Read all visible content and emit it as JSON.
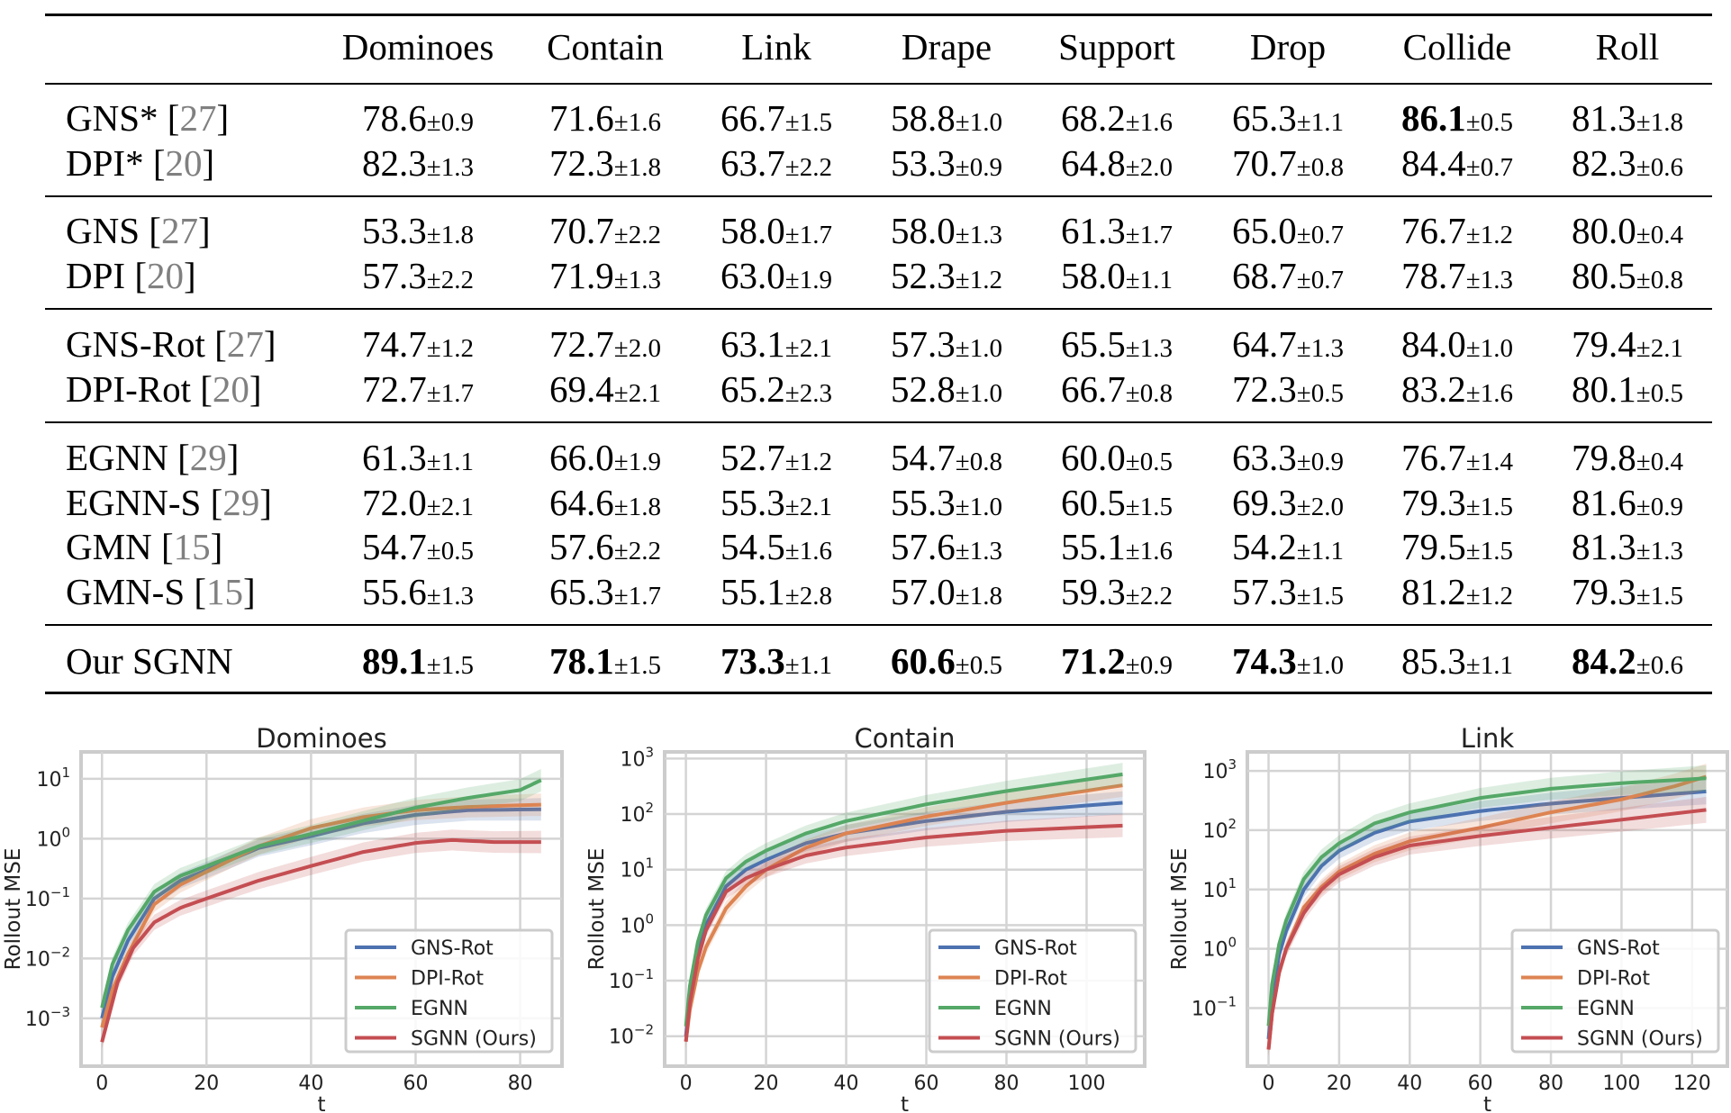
{
  "table": {
    "columns": [
      "Dominoes",
      "Contain",
      "Link",
      "Drape",
      "Support",
      "Drop",
      "Collide",
      "Roll"
    ],
    "groups": [
      [
        {
          "name": "GNS*",
          "ref": "27",
          "cells": [
            [
              "78.6",
              "±0.9",
              false
            ],
            [
              "71.6",
              "±1.6",
              false
            ],
            [
              "66.7",
              "±1.5",
              false
            ],
            [
              "58.8",
              "±1.0",
              false
            ],
            [
              "68.2",
              "±1.6",
              false
            ],
            [
              "65.3",
              "±1.1",
              false
            ],
            [
              "86.1",
              "±0.5",
              true
            ],
            [
              "81.3",
              "±1.8",
              false
            ]
          ]
        },
        {
          "name": "DPI*",
          "ref": "20",
          "cells": [
            [
              "82.3",
              "±1.3",
              false
            ],
            [
              "72.3",
              "±1.8",
              false
            ],
            [
              "63.7",
              "±2.2",
              false
            ],
            [
              "53.3",
              "±0.9",
              false
            ],
            [
              "64.8",
              "±2.0",
              false
            ],
            [
              "70.7",
              "±0.8",
              false
            ],
            [
              "84.4",
              "±0.7",
              false
            ],
            [
              "82.3",
              "±0.6",
              false
            ]
          ]
        }
      ],
      [
        {
          "name": "GNS",
          "ref": "27",
          "cells": [
            [
              "53.3",
              "±1.8",
              false
            ],
            [
              "70.7",
              "±2.2",
              false
            ],
            [
              "58.0",
              "±1.7",
              false
            ],
            [
              "58.0",
              "±1.3",
              false
            ],
            [
              "61.3",
              "±1.7",
              false
            ],
            [
              "65.0",
              "±0.7",
              false
            ],
            [
              "76.7",
              "±1.2",
              false
            ],
            [
              "80.0",
              "±0.4",
              false
            ]
          ]
        },
        {
          "name": "DPI",
          "ref": "20",
          "cells": [
            [
              "57.3",
              "±2.2",
              false
            ],
            [
              "71.9",
              "±1.3",
              false
            ],
            [
              "63.0",
              "±1.9",
              false
            ],
            [
              "52.3",
              "±1.2",
              false
            ],
            [
              "58.0",
              "±1.1",
              false
            ],
            [
              "68.7",
              "±0.7",
              false
            ],
            [
              "78.7",
              "±1.3",
              false
            ],
            [
              "80.5",
              "±0.8",
              false
            ]
          ]
        }
      ],
      [
        {
          "name": "GNS-Rot",
          "ref": "27",
          "cells": [
            [
              "74.7",
              "±1.2",
              false
            ],
            [
              "72.7",
              "±2.0",
              false
            ],
            [
              "63.1",
              "±2.1",
              false
            ],
            [
              "57.3",
              "±1.0",
              false
            ],
            [
              "65.5",
              "±1.3",
              false
            ],
            [
              "64.7",
              "±1.3",
              false
            ],
            [
              "84.0",
              "±1.0",
              false
            ],
            [
              "79.4",
              "±2.1",
              false
            ]
          ]
        },
        {
          "name": "DPI-Rot",
          "ref": "20",
          "cells": [
            [
              "72.7",
              "±1.7",
              false
            ],
            [
              "69.4",
              "±2.1",
              false
            ],
            [
              "65.2",
              "±2.3",
              false
            ],
            [
              "52.8",
              "±1.0",
              false
            ],
            [
              "66.7",
              "±0.8",
              false
            ],
            [
              "72.3",
              "±0.5",
              false
            ],
            [
              "83.2",
              "±1.6",
              false
            ],
            [
              "80.1",
              "±0.5",
              false
            ]
          ]
        }
      ],
      [
        {
          "name": "EGNN",
          "ref": "29",
          "cells": [
            [
              "61.3",
              "±1.1",
              false
            ],
            [
              "66.0",
              "±1.9",
              false
            ],
            [
              "52.7",
              "±1.2",
              false
            ],
            [
              "54.7",
              "±0.8",
              false
            ],
            [
              "60.0",
              "±0.5",
              false
            ],
            [
              "63.3",
              "±0.9",
              false
            ],
            [
              "76.7",
              "±1.4",
              false
            ],
            [
              "79.8",
              "±0.4",
              false
            ]
          ]
        },
        {
          "name": "EGNN-S",
          "ref": "29",
          "cells": [
            [
              "72.0",
              "±2.1",
              false
            ],
            [
              "64.6",
              "±1.8",
              false
            ],
            [
              "55.3",
              "±2.1",
              false
            ],
            [
              "55.3",
              "±1.0",
              false
            ],
            [
              "60.5",
              "±1.5",
              false
            ],
            [
              "69.3",
              "±2.0",
              false
            ],
            [
              "79.3",
              "±1.5",
              false
            ],
            [
              "81.6",
              "±0.9",
              false
            ]
          ]
        },
        {
          "name": "GMN",
          "ref": "15",
          "cells": [
            [
              "54.7",
              "±0.5",
              false
            ],
            [
              "57.6",
              "±2.2",
              false
            ],
            [
              "54.5",
              "±1.6",
              false
            ],
            [
              "57.6",
              "±1.3",
              false
            ],
            [
              "55.1",
              "±1.6",
              false
            ],
            [
              "54.2",
              "±1.1",
              false
            ],
            [
              "79.5",
              "±1.5",
              false
            ],
            [
              "81.3",
              "±1.3",
              false
            ]
          ]
        },
        {
          "name": "GMN-S",
          "ref": "15",
          "cells": [
            [
              "55.6",
              "±1.3",
              false
            ],
            [
              "65.3",
              "±1.7",
              false
            ],
            [
              "55.1",
              "±2.8",
              false
            ],
            [
              "57.0",
              "±1.8",
              false
            ],
            [
              "59.3",
              "±2.2",
              false
            ],
            [
              "57.3",
              "±1.5",
              false
            ],
            [
              "81.2",
              "±1.2",
              false
            ],
            [
              "79.3",
              "±1.5",
              false
            ]
          ]
        }
      ],
      [
        {
          "name": "Our SGNN",
          "ref": "",
          "cells": [
            [
              "89.1",
              "±1.5",
              true
            ],
            [
              "78.1",
              "±1.5",
              true
            ],
            [
              "73.3",
              "±1.1",
              true
            ],
            [
              "60.6",
              "±0.5",
              true
            ],
            [
              "71.2",
              "±0.9",
              true
            ],
            [
              "74.3",
              "±1.0",
              true
            ],
            [
              "85.3",
              "±1.1",
              false
            ],
            [
              "84.2",
              "±0.6",
              true
            ]
          ]
        }
      ]
    ]
  },
  "chart_data": [
    {
      "type": "line",
      "title": "Dominoes",
      "xlabel": "t",
      "ylabel": "Rollout MSE",
      "yscale": "log",
      "xlim": [
        -4,
        88
      ],
      "ylim_log10": [
        -3.8,
        1.45
      ],
      "x_ticks": [
        "0",
        "20",
        "40",
        "60",
        "80"
      ],
      "x_tick_values": [
        0,
        20,
        40,
        60,
        80
      ],
      "y_ticks": [
        {
          "base": "10",
          "exp": "−3"
        },
        {
          "base": "10",
          "exp": "−2"
        },
        {
          "base": "10",
          "exp": "−1"
        },
        {
          "base": "10",
          "exp": "0"
        },
        {
          "base": "10",
          "exp": "1"
        }
      ],
      "y_tick_values": [
        -3,
        -2,
        -1,
        0,
        1
      ],
      "legend": "bottom-right",
      "grid": true,
      "series": [
        {
          "name": "GNS-Rot",
          "color": "#4c72b0",
          "x": [
            0,
            2,
            5,
            10,
            15,
            20,
            30,
            40,
            50,
            60,
            70,
            84
          ],
          "y": [
            0.001,
            0.005,
            0.02,
            0.1,
            0.2,
            0.3,
            0.7,
            1.1,
            1.8,
            2.5,
            3.0,
            3.1
          ]
        },
        {
          "name": "DPI-Rot",
          "color": "#dd8452",
          "x": [
            0,
            2,
            5,
            10,
            15,
            20,
            30,
            40,
            50,
            60,
            70,
            84
          ],
          "y": [
            0.0007,
            0.003,
            0.012,
            0.08,
            0.17,
            0.28,
            0.75,
            1.5,
            2.3,
            3.0,
            3.4,
            3.7
          ]
        },
        {
          "name": "EGNN",
          "color": "#55a868",
          "x": [
            0,
            2,
            5,
            10,
            15,
            20,
            30,
            40,
            50,
            60,
            70,
            80,
            84
          ],
          "y": [
            0.0015,
            0.008,
            0.03,
            0.13,
            0.24,
            0.35,
            0.75,
            1.2,
            2.0,
            3.3,
            4.8,
            6.5,
            9.5
          ]
        },
        {
          "name": "SGNN (Ours)",
          "color": "#c44e52",
          "x": [
            0,
            3,
            6,
            10,
            15,
            20,
            30,
            40,
            50,
            60,
            67,
            75,
            84
          ],
          "y": [
            0.0004,
            0.004,
            0.015,
            0.04,
            0.07,
            0.1,
            0.2,
            0.35,
            0.6,
            0.85,
            0.95,
            0.88,
            0.88
          ]
        }
      ]
    },
    {
      "type": "line",
      "title": "Contain",
      "xlabel": "t",
      "ylabel": "Rollout MSE",
      "yscale": "log",
      "xlim": [
        -5.3,
        114.5
      ],
      "ylim_log10": [
        -2.54,
        3.12
      ],
      "x_ticks": [
        "0",
        "20",
        "40",
        "60",
        "80",
        "100"
      ],
      "x_tick_values": [
        0,
        20,
        40,
        60,
        80,
        100
      ],
      "y_ticks": [
        {
          "base": "10",
          "exp": "−2"
        },
        {
          "base": "10",
          "exp": "−1"
        },
        {
          "base": "10",
          "exp": "0"
        },
        {
          "base": "10",
          "exp": "1"
        },
        {
          "base": "10",
          "exp": "2"
        },
        {
          "base": "10",
          "exp": "3"
        }
      ],
      "y_tick_values": [
        -2,
        -1,
        0,
        1,
        2,
        3
      ],
      "legend": "bottom-right",
      "grid": true,
      "series": [
        {
          "name": "GNS-Rot",
          "color": "#4c72b0",
          "x": [
            0,
            1,
            3,
            5,
            10,
            15,
            20,
            30,
            40,
            60,
            80,
            109
          ],
          "y": [
            0.01,
            0.05,
            0.3,
            1,
            5,
            10,
            15,
            30,
            45,
            75,
            110,
            160
          ]
        },
        {
          "name": "DPI-Rot",
          "color": "#dd8452",
          "x": [
            0,
            1,
            3,
            5,
            10,
            15,
            20,
            30,
            40,
            60,
            80,
            109
          ],
          "y": [
            0.008,
            0.03,
            0.15,
            0.4,
            2,
            5,
            10,
            25,
            45,
            90,
            160,
            330
          ]
        },
        {
          "name": "EGNN",
          "color": "#55a868",
          "x": [
            0,
            1,
            3,
            5,
            10,
            15,
            20,
            30,
            40,
            60,
            80,
            109
          ],
          "y": [
            0.015,
            0.08,
            0.5,
            1.5,
            7,
            14,
            22,
            45,
            75,
            150,
            260,
            520
          ]
        },
        {
          "name": "SGNN (Ours)",
          "color": "#c44e52",
          "x": [
            0,
            1,
            3,
            5,
            10,
            15,
            20,
            30,
            40,
            60,
            80,
            109
          ],
          "y": [
            0.008,
            0.04,
            0.25,
            0.8,
            4,
            7,
            10,
            18,
            25,
            38,
            50,
            62
          ]
        }
      ]
    },
    {
      "type": "line",
      "title": "Link",
      "xlabel": "t",
      "ylabel": "Rollout MSE",
      "yscale": "log",
      "xlim": [
        -6,
        130
      ],
      "ylim_log10": [
        -1.98,
        3.32
      ],
      "x_ticks": [
        "0",
        "20",
        "40",
        "60",
        "80",
        "100",
        "120"
      ],
      "x_tick_values": [
        0,
        20,
        40,
        60,
        80,
        100,
        120
      ],
      "y_ticks": [
        {
          "base": "10",
          "exp": "−1"
        },
        {
          "base": "10",
          "exp": "0"
        },
        {
          "base": "10",
          "exp": "1"
        },
        {
          "base": "10",
          "exp": "2"
        },
        {
          "base": "10",
          "exp": "3"
        }
      ],
      "y_tick_values": [
        -1,
        0,
        1,
        2,
        3
      ],
      "legend": "bottom-right",
      "grid": true,
      "series": [
        {
          "name": "GNS-Rot",
          "color": "#4c72b0",
          "x": [
            0,
            1,
            3,
            5,
            10,
            15,
            20,
            30,
            40,
            60,
            80,
            100,
            124
          ],
          "y": [
            0.03,
            0.15,
            0.8,
            2,
            10,
            25,
            45,
            90,
            140,
            210,
            280,
            350,
            450
          ]
        },
        {
          "name": "DPI-Rot",
          "color": "#dd8452",
          "x": [
            0,
            1,
            3,
            5,
            10,
            15,
            20,
            30,
            40,
            60,
            80,
            100,
            115,
            124
          ],
          "y": [
            0.02,
            0.08,
            0.4,
            1,
            5,
            11,
            20,
            40,
            65,
            110,
            200,
            330,
            550,
            800
          ]
        },
        {
          "name": "EGNN",
          "color": "#55a868",
          "x": [
            0,
            1,
            3,
            5,
            10,
            15,
            20,
            30,
            40,
            60,
            80,
            100,
            124
          ],
          "y": [
            0.05,
            0.25,
            1.2,
            3,
            15,
            35,
            60,
            130,
            200,
            350,
            500,
            620,
            750
          ]
        },
        {
          "name": "SGNN (Ours)",
          "color": "#c44e52",
          "x": [
            0,
            1,
            3,
            5,
            10,
            15,
            20,
            30,
            40,
            60,
            80,
            100,
            124
          ],
          "y": [
            0.02,
            0.08,
            0.4,
            1,
            4,
            10,
            18,
            35,
            55,
            80,
            110,
            150,
            220
          ]
        }
      ]
    }
  ]
}
